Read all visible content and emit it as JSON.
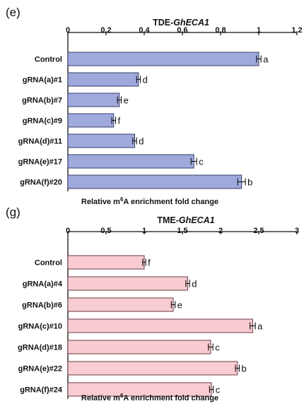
{
  "chart_data": [
    {
      "panel": "(e)",
      "type": "bar",
      "orientation": "horizontal",
      "title_prefix": "TDE-",
      "title_gene": "GhECA1",
      "categories": [
        "Control",
        "gRNA(a)#1",
        "gRNA(b)#7",
        "gRNA(c)#9",
        "gRNA(d)#11",
        "gRNA(e)#17",
        "gRNA(f)#20"
      ],
      "values": [
        1.0,
        0.37,
        0.27,
        0.24,
        0.35,
        0.66,
        0.91
      ],
      "errors": [
        0.012,
        0.01,
        0.01,
        0.01,
        0.01,
        0.015,
        0.02
      ],
      "letters": [
        "a",
        "d",
        "e",
        "f",
        "d",
        "c",
        "b"
      ],
      "xticks": [
        "0",
        "0.2",
        "0.4",
        "0.6",
        "0.8",
        "1",
        "1.2"
      ],
      "xlim": [
        0,
        1.2
      ],
      "xlabel_pre": "Relative m",
      "xlabel_sup": "6",
      "xlabel_post": "A enrichment fold change",
      "bar_color": "#9fa9dc",
      "bar_stroke": "#3a3f6a"
    },
    {
      "panel": "(g)",
      "type": "bar",
      "orientation": "horizontal",
      "title_prefix": "TME-",
      "title_gene": "GhECA1",
      "categories": [
        "Control",
        "gRNA(a)#4",
        "gRNA(b)#6",
        "gRNA(c)#10",
        "gRNA(d)#18",
        "gRNA(e)#22",
        "gRNA(f)#24"
      ],
      "values": [
        1.0,
        1.57,
        1.38,
        2.42,
        1.87,
        2.22,
        1.88
      ],
      "errors": [
        0.02,
        0.025,
        0.025,
        0.035,
        0.03,
        0.025,
        0.025
      ],
      "letters": [
        "f",
        "d",
        "e",
        "a",
        "c",
        "b",
        "c"
      ],
      "xticks": [
        "0",
        "0.5",
        "1",
        "1.5",
        "2",
        "2.5",
        "3"
      ],
      "xlim": [
        0,
        3
      ],
      "xlabel_pre": "Relative m",
      "xlabel_sup": "6",
      "xlabel_post": "A enrichment fold change",
      "bar_color": "#f8ccd2",
      "bar_stroke": "#6a3a42"
    }
  ]
}
